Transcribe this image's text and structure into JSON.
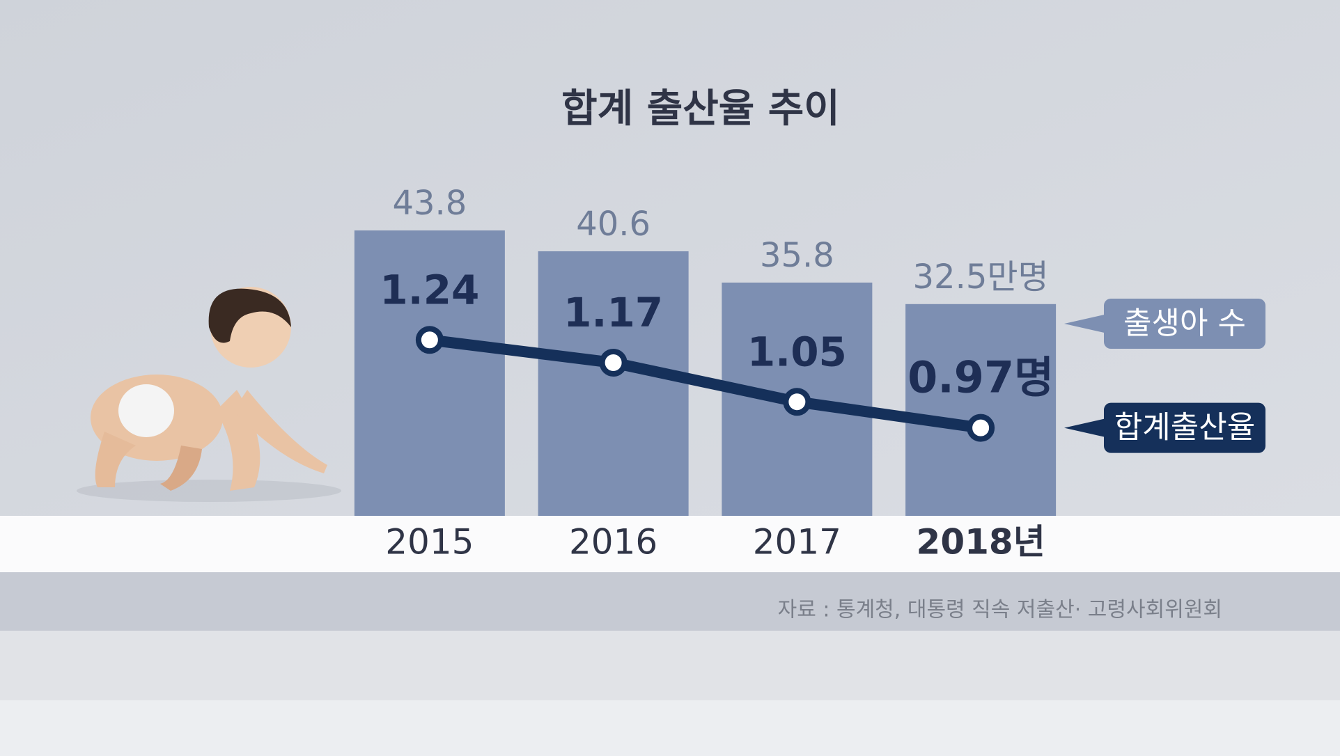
{
  "chart_data": {
    "type": "bar_line",
    "title": "합계 출산율 추이",
    "categories": [
      "2015",
      "2016",
      "2017",
      "2018년"
    ],
    "series": [
      {
        "name": "출생아 수",
        "type": "bar",
        "color": "#7d8fb2",
        "values": [
          43.8,
          40.6,
          35.8,
          32.5
        ],
        "value_labels": [
          "43.8",
          "40.6",
          "35.8",
          "32.5만명"
        ]
      },
      {
        "name": "합계출산율",
        "type": "line",
        "axis": "y2",
        "color": "#15305a",
        "values": [
          1.24,
          1.17,
          1.05,
          0.97
        ],
        "value_labels": [
          "1.24",
          "1.17",
          "1.05",
          "0.97명"
        ]
      }
    ],
    "ylim": [
      0,
      50
    ],
    "y2lim": [
      0.7,
      1.7
    ],
    "source": "자료 : 통계청, 대통령 직속 저출산· 고령사회위원회"
  }
}
